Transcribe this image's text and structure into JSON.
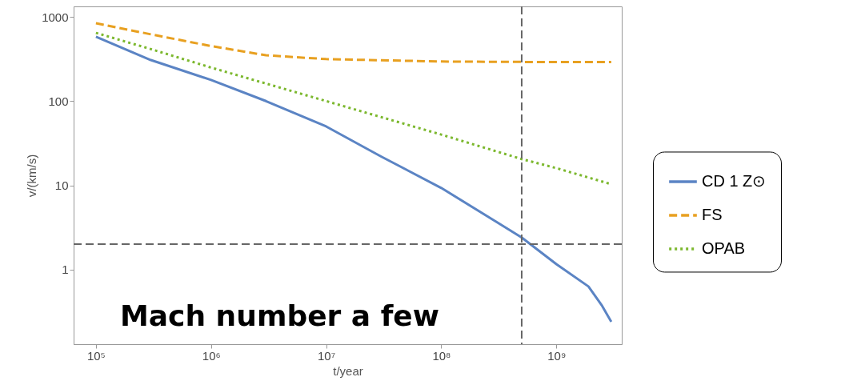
{
  "chart_data": {
    "type": "line",
    "xlabel": "t/year",
    "ylabel": "v/(km/s)",
    "log": "xy",
    "grid": false,
    "legend": "right",
    "marker": "none",
    "xlim": [
      64000,
      3700000000
    ],
    "ylim": [
      0.13,
      1330
    ],
    "xticks": [
      {
        "value": 100000,
        "label": "10⁵"
      },
      {
        "value": 1000000,
        "label": "10⁶"
      },
      {
        "value": 10000000,
        "label": "10⁷"
      },
      {
        "value": 100000000,
        "label": "10⁸"
      },
      {
        "value": 1000000000,
        "label": "10⁹"
      }
    ],
    "yticks": [
      1,
      10,
      100,
      1000
    ],
    "series": [
      {
        "name": "CD 1 Z⊙",
        "color": "#5b84c4",
        "line_style": "solid",
        "x": [
          100000,
          300000,
          1000000,
          3000000,
          10000000,
          30000000,
          100000000,
          300000000,
          500000000,
          1000000000,
          1900000000,
          2500000000,
          3000000000
        ],
        "values": [
          580,
          307,
          178,
          100,
          50,
          22,
          9.3,
          3.7,
          2.4,
          1.16,
          0.63,
          0.37,
          0.24
        ]
      },
      {
        "name": "FS",
        "color": "#e8a020",
        "line_style": "dashed",
        "x": [
          100000,
          300000,
          1000000,
          3000000,
          10000000,
          100000000,
          1000000000,
          3000000000
        ],
        "values": [
          840,
          620,
          450,
          350,
          315,
          295,
          290,
          290
        ]
      },
      {
        "name": "OPAB",
        "color": "#7cb82e",
        "line_style": "dotted",
        "x": [
          100000,
          300000,
          1000000,
          10000000,
          100000000,
          500000000,
          1000000000,
          3000000000
        ],
        "values": [
          645,
          414,
          250,
          100,
          40,
          20.5,
          16,
          10.3
        ]
      }
    ],
    "ref_lines": [
      {
        "axis": "x",
        "value": 500000000,
        "label": null,
        "color": "#666666",
        "line_style": "dashed"
      },
      {
        "axis": "y",
        "value": 2,
        "label": null,
        "color": "#666666",
        "line_style": "dashed"
      }
    ],
    "annotations": [
      "Mach number a few"
    ]
  }
}
